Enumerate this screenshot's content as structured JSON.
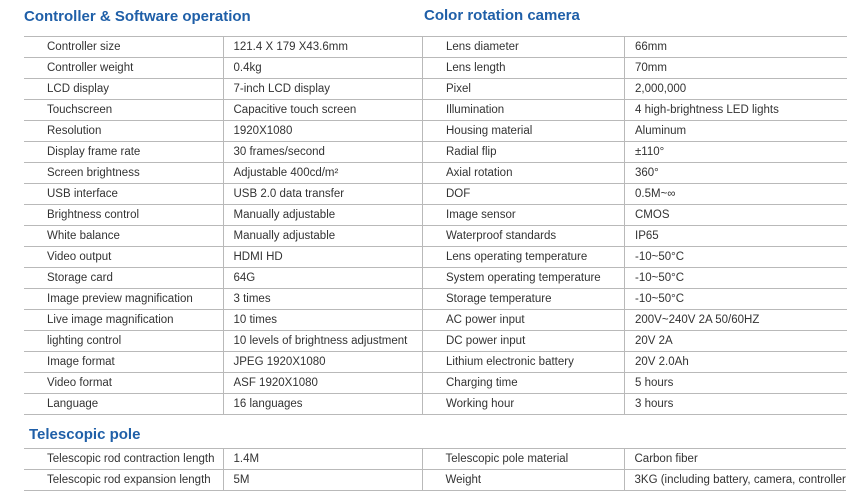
{
  "sections": {
    "controller_title": "Controller & Software operation",
    "camera_title": "Color rotation camera",
    "pole_title": "Telescopic pole"
  },
  "controller_rows": [
    {
      "label": "Controller size",
      "value": "121.4 X 179 X43.6mm"
    },
    {
      "label": "Controller weight",
      "value": "0.4kg"
    },
    {
      "label": "LCD display",
      "value": "7-inch LCD display"
    },
    {
      "label": "Touchscreen",
      "value": "Capacitive touch screen"
    },
    {
      "label": "Resolution",
      "value": "1920X1080"
    },
    {
      "label": "Display frame rate",
      "value": "30 frames/second"
    },
    {
      "label": "Screen brightness",
      "value": "Adjustable 400cd/m²"
    },
    {
      "label": "USB interface",
      "value": "USB 2.0 data transfer"
    },
    {
      "label": "Brightness control",
      "value": "Manually adjustable"
    },
    {
      "label": "White balance",
      "value": "Manually adjustable"
    },
    {
      "label": "Video output",
      "value": "HDMI HD"
    },
    {
      "label": "Storage card",
      "value": "64G"
    },
    {
      "label": "Image preview magnification",
      "value": "3 times"
    },
    {
      "label": "Live image magnification",
      "value": "10 times"
    },
    {
      "label": "lighting control",
      "value": "10 levels of brightness adjustment"
    },
    {
      "label": "Image format",
      "value": "JPEG 1920X1080"
    },
    {
      "label": "Video format",
      "value": "ASF 1920X1080"
    },
    {
      "label": "Language",
      "value": "16 languages"
    }
  ],
  "camera_rows": [
    {
      "label": "Lens diameter",
      "value": "66mm"
    },
    {
      "label": "Lens length",
      "value": "70mm"
    },
    {
      "label": "Pixel",
      "value": "2,000,000"
    },
    {
      "label": "Illumination",
      "value": "4 high-brightness LED lights"
    },
    {
      "label": "Housing material",
      "value": "Aluminum"
    },
    {
      "label": "Radial flip",
      "value": "±110°"
    },
    {
      "label": "Axial rotation",
      "value": "360°"
    },
    {
      "label": "DOF",
      "value": "0.5M~∞"
    },
    {
      "label": "Image sensor",
      "value": "CMOS"
    },
    {
      "label": "Waterproof standards",
      "value": "IP65"
    },
    {
      "label": "Lens operating temperature",
      "value": "-10~50°C"
    },
    {
      "label": "System operating temperature",
      "value": "-10~50°C"
    },
    {
      "label": "Storage temperature",
      "value": "-10~50°C"
    },
    {
      "label": "AC power input",
      "value": "200V~240V 2A 50/60HZ"
    },
    {
      "label": "DC power input",
      "value": "20V 2A"
    },
    {
      "label": "Lithium electronic battery",
      "value": "20V 2.0Ah"
    },
    {
      "label": "Charging time",
      "value": "5 hours"
    },
    {
      "label": "Working hour",
      "value": "3 hours"
    }
  ],
  "pole_rows": [
    {
      "label": "Telescopic rod contraction length",
      "value": "1.4M",
      "label2": "Telescopic pole material",
      "value2": "Carbon fiber"
    },
    {
      "label": "Telescopic rod expansion length",
      "value": "5M",
      "label2": "Weight",
      "value2": "3KG (including battery, camera, controller)"
    }
  ]
}
